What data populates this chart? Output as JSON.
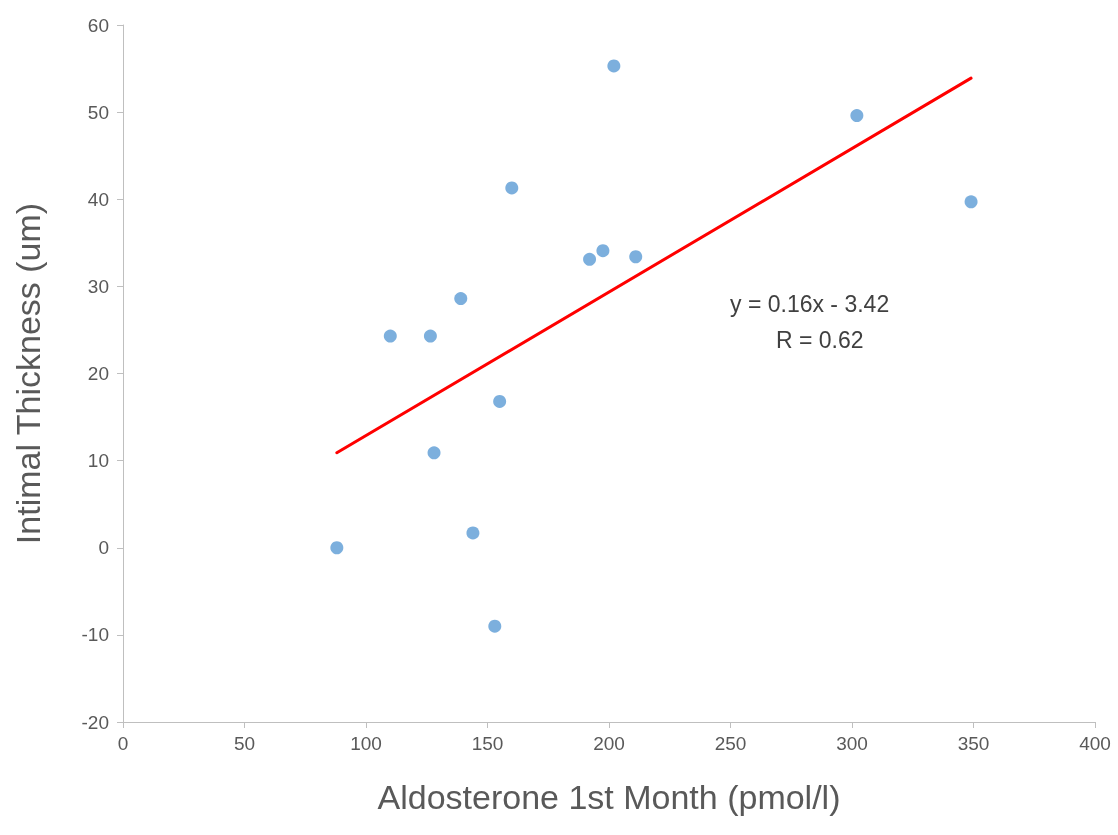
{
  "chart_data": {
    "type": "scatter",
    "xlabel": "Aldosterone 1st Month (pmol/l)",
    "ylabel": "Intimal Thickness (um)",
    "xlim": [
      0,
      400
    ],
    "xticks": [
      0,
      50,
      100,
      150,
      200,
      250,
      300,
      350,
      400
    ],
    "ylim": [
      -20,
      60
    ],
    "yticks": [
      -20,
      -10,
      0,
      10,
      20,
      30,
      40,
      50,
      60
    ],
    "grid": false,
    "series": [
      {
        "marker": "circle",
        "color": "#5b9bd5",
        "x": [
          88,
          110,
          126.5,
          128,
          139,
          144,
          153,
          155,
          160,
          192,
          197.5,
          202,
          211,
          302,
          349
        ],
        "values": [
          0,
          24.3,
          24.3,
          10.9,
          28.6,
          1.7,
          -9,
          16.8,
          41.3,
          33.1,
          34.1,
          55.3,
          33.4,
          49.6,
          39.7
        ]
      },
      {
        "type": "line",
        "color": "#ff0000",
        "line_style": "solid",
        "x": [
          88,
          349
        ],
        "values": [
          10.9,
          53.9
        ]
      }
    ],
    "annotations": [
      "y = 0.16x - 3.42",
      "R = 0.62"
    ]
  }
}
